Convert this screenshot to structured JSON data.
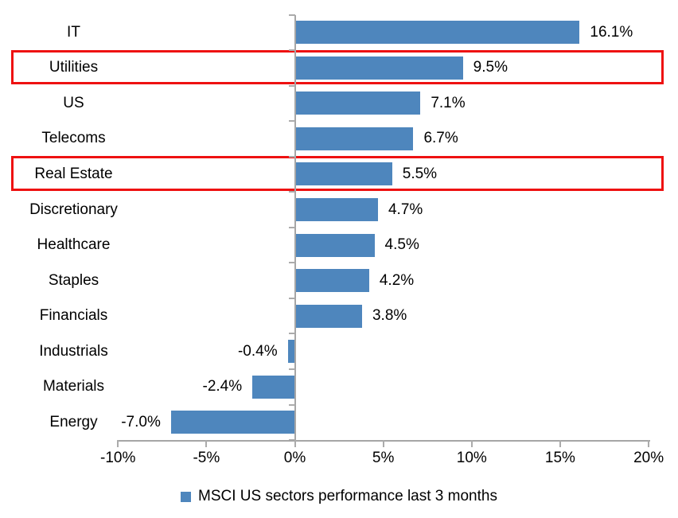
{
  "chart_data": {
    "type": "bar",
    "orientation": "horizontal",
    "title": "",
    "categories": [
      "IT",
      "Utilities",
      "US",
      "Telecoms",
      "Real Estate",
      "Discretionary",
      "Healthcare",
      "Staples",
      "Financials",
      "Industrials",
      "Materials",
      "Energy"
    ],
    "values": [
      16.1,
      9.5,
      7.1,
      6.7,
      5.5,
      4.7,
      4.5,
      4.2,
      3.8,
      -0.4,
      -2.4,
      -7.0
    ],
    "value_labels": [
      "16.1%",
      "9.5%",
      "7.1%",
      "6.7%",
      "5.5%",
      "4.7%",
      "4.5%",
      "4.2%",
      "3.8%",
      "-0.4%",
      "-2.4%",
      "-7.0%"
    ],
    "x_ticks": [
      "-10%",
      "-5%",
      "0%",
      "5%",
      "10%",
      "15%",
      "20%"
    ],
    "x_tick_values": [
      -10,
      -5,
      0,
      5,
      10,
      15,
      20
    ],
    "xlim": [
      -10,
      20
    ],
    "grid": false,
    "bar_color": "#4e86bd",
    "axis_color": "#a6a6a6",
    "highlight_color": "#ee1111",
    "highlighted_categories": [
      "Utilities",
      "Real Estate"
    ],
    "legend": {
      "label": "MSCI US sectors performance last 3 months",
      "swatch_color": "#4e86bd",
      "position": "bottom-center"
    }
  }
}
